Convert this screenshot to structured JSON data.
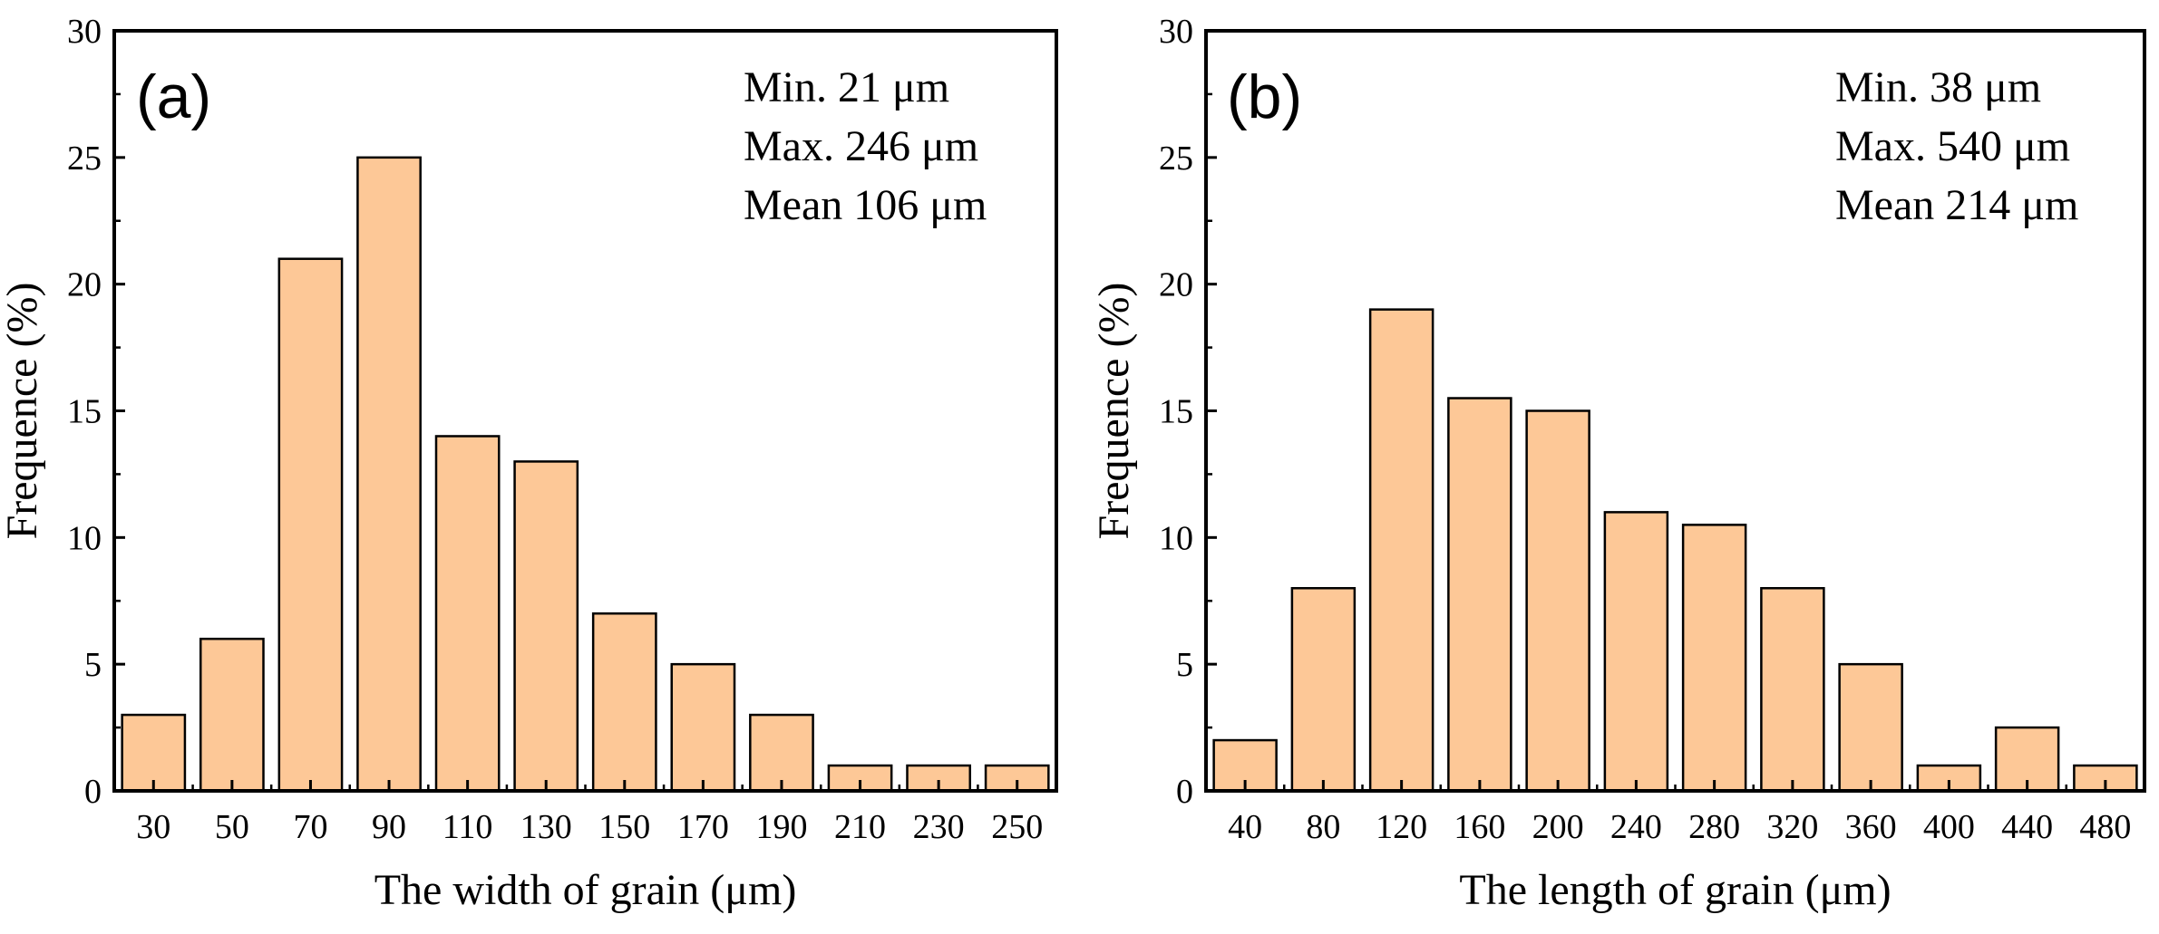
{
  "chart_data": [
    {
      "type": "bar",
      "panel_label": "(a)",
      "categories": [
        "30",
        "50",
        "70",
        "90",
        "110",
        "130",
        "150",
        "170",
        "190",
        "210",
        "230",
        "250"
      ],
      "values": [
        3,
        6,
        21,
        25,
        14,
        13,
        7,
        5,
        3,
        1,
        1,
        1
      ],
      "title": "",
      "xlabel": "The width of grain (μm)",
      "ylabel": "Frequence (%)",
      "ylim": [
        0,
        30
      ],
      "yticks": [
        "0",
        "5",
        "10",
        "15",
        "20",
        "25",
        "30"
      ],
      "stats": [
        "Min. 21 μm",
        "Max. 246 μm",
        "Mean 106 μm"
      ],
      "bar_color": "#FDC897",
      "edge_color": "#000000",
      "grid": false,
      "stats_placement": "top-right"
    },
    {
      "type": "bar",
      "panel_label": "(b)",
      "categories": [
        "40",
        "80",
        "120",
        "160",
        "200",
        "240",
        "280",
        "320",
        "360",
        "400",
        "440",
        "480"
      ],
      "values": [
        2,
        8,
        19,
        15.5,
        15,
        11,
        10.5,
        8,
        5,
        1,
        2.5,
        1
      ],
      "title": "",
      "xlabel": "The length of grain (μm)",
      "ylabel": "Frequence (%)",
      "ylim": [
        0,
        30
      ],
      "yticks": [
        "0",
        "5",
        "10",
        "15",
        "20",
        "25",
        "30"
      ],
      "stats": [
        "Min. 38 μm",
        "Max. 540 μm",
        "Mean 214 μm"
      ],
      "bar_color": "#FDC897",
      "edge_color": "#000000",
      "grid": false,
      "stats_placement": "top-right"
    }
  ]
}
